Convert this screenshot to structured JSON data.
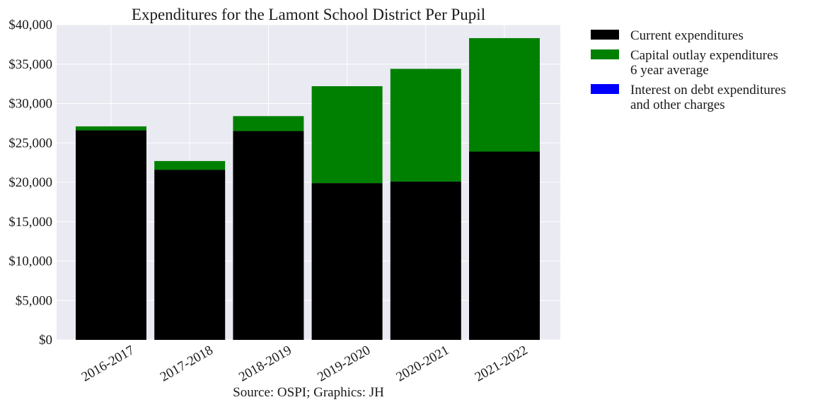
{
  "chart_data": {
    "type": "bar",
    "stacked": true,
    "title": "Expenditures for the Lamont School District Per Pupil",
    "caption": "Source: OSPI; Graphics: JH",
    "categories": [
      "2016-2017",
      "2017-2018",
      "2018-2019",
      "2019-2020",
      "2020-2021",
      "2021-2022"
    ],
    "series": [
      {
        "name": "Current expenditures",
        "color": "#000000",
        "values": [
          26600,
          21600,
          26500,
          19900,
          20100,
          23900
        ]
      },
      {
        "name": "Capital outlay expenditures 6 year average",
        "name_lines": [
          "Capital outlay expenditures",
          "6 year average"
        ],
        "color": "#008000",
        "values": [
          500,
          1100,
          1900,
          12300,
          14300,
          14400
        ]
      },
      {
        "name": "Interest on debt expenditures and other charges",
        "name_lines": [
          "Interest on debt expenditures",
          "and other charges"
        ],
        "color": "#0000ff",
        "values": [
          0,
          0,
          0,
          0,
          0,
          0
        ]
      }
    ],
    "ylim": [
      0,
      40000
    ],
    "yticks": [
      0,
      5000,
      10000,
      15000,
      20000,
      25000,
      30000,
      35000,
      40000
    ],
    "ytick_labels": [
      "$0",
      "$5,000",
      "$10,000",
      "$15,000",
      "$20,000",
      "$25,000",
      "$30,000",
      "$35,000",
      "$40,000"
    ],
    "grid": true,
    "legend_position": "outside-right"
  }
}
